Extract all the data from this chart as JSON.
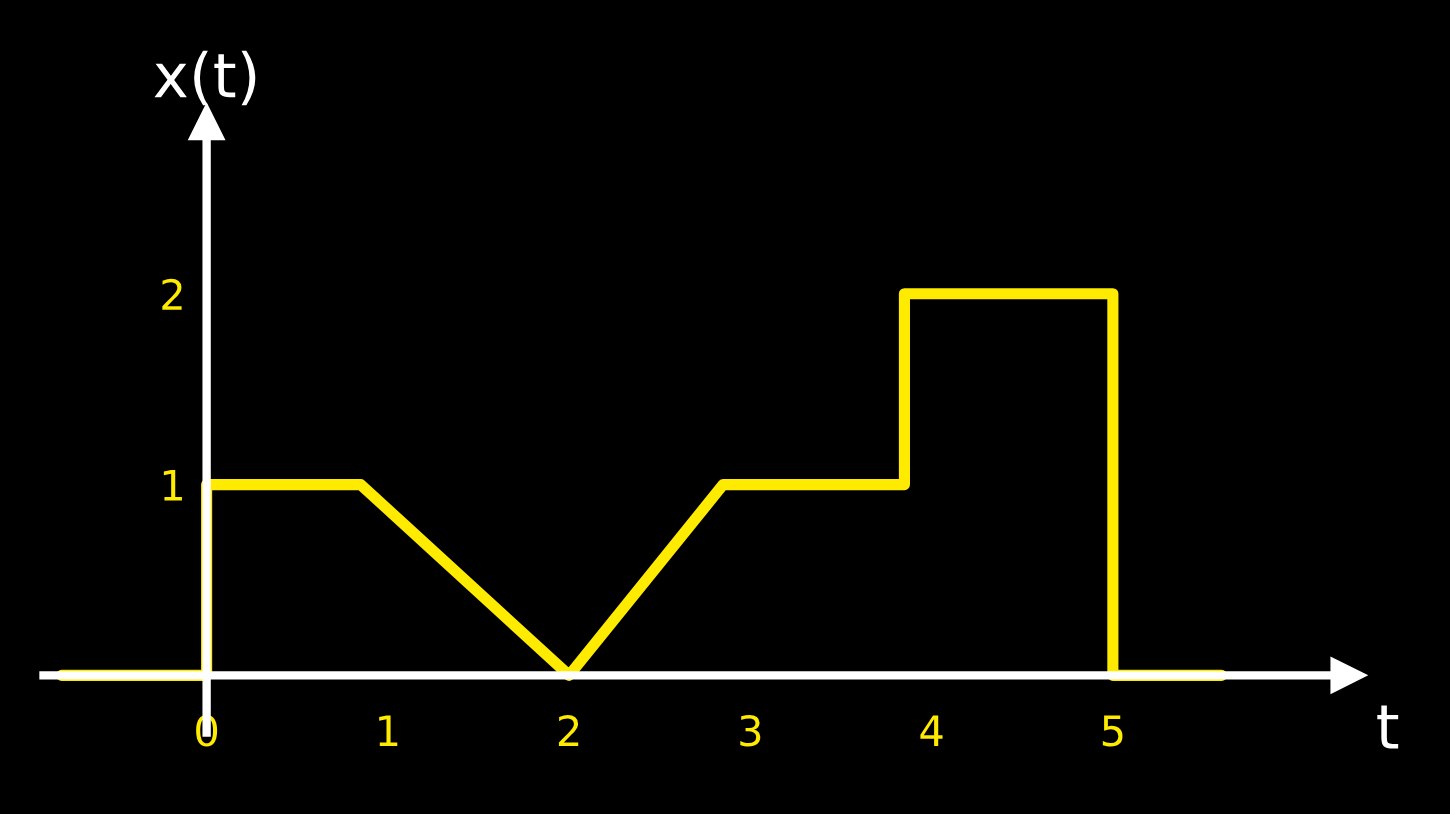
{
  "chart_data": {
    "type": "line",
    "xlabel": "t",
    "ylabel": "x(t)",
    "x": [
      -0.8,
      0,
      0,
      0.85,
      2,
      2.85,
      3.85,
      3.85,
      5,
      5,
      5.6
    ],
    "series": [
      {
        "color": "#ffeb00",
        "values": [
          0,
          0,
          1,
          1,
          0,
          1,
          1,
          2,
          2,
          0,
          0
        ]
      }
    ],
    "xlim": [
      -0.9,
      6.3
    ],
    "ylim": [
      -0.3,
      2.9
    ],
    "xticks": [
      0,
      1,
      2,
      3,
      4,
      5
    ],
    "yticks": [
      1,
      2
    ],
    "grid": false,
    "legend": false,
    "marker": "none",
    "line_style": "solid"
  }
}
